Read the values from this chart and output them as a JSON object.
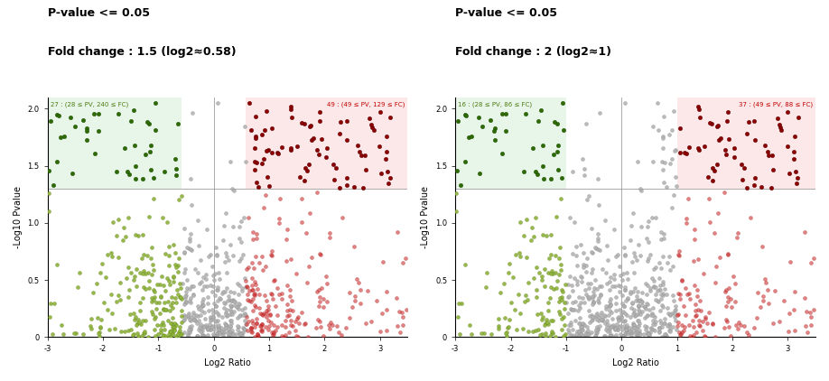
{
  "plot1": {
    "title_line1": "P-value <= 0.05",
    "title_line2": "Fold change : 1.5 (log2≈0.58)",
    "xlabel": "Log2 Ratio",
    "ylabel": "-Log10 Pvalue",
    "xlim": [
      -3,
      3.5
    ],
    "ylim": [
      0,
      2.1
    ],
    "fc_threshold": 0.58,
    "pv_threshold": 1.301,
    "label_left": "27 : (28 ≤ PV, 240 ≤ FC)",
    "label_right": "49 : (49 ≤ PV, 129 ≤ FC)",
    "label_left_color": "#4d7c0f",
    "label_right_color": "#c00000"
  },
  "plot2": {
    "title_line1": "P-value <= 0.05",
    "title_line2": "Fold change : 2 (log2≈1)",
    "xlabel": "Log2 Ratio",
    "ylabel": "-Log10 Pvalue",
    "xlim": [
      -3,
      3.5
    ],
    "ylim": [
      0,
      2.1
    ],
    "fc_threshold": 1.0,
    "pv_threshold": 1.301,
    "label_left": "16 : (28 ≤ PV, 86 ≤ FC)",
    "label_right": "37 : (49 ≤ PV, 88 ≤ FC)",
    "label_left_color": "#4d7c0f",
    "label_right_color": "#c00000"
  },
  "bg_green": "#e8f5e9",
  "bg_red": "#fce8e8",
  "seed": 42
}
